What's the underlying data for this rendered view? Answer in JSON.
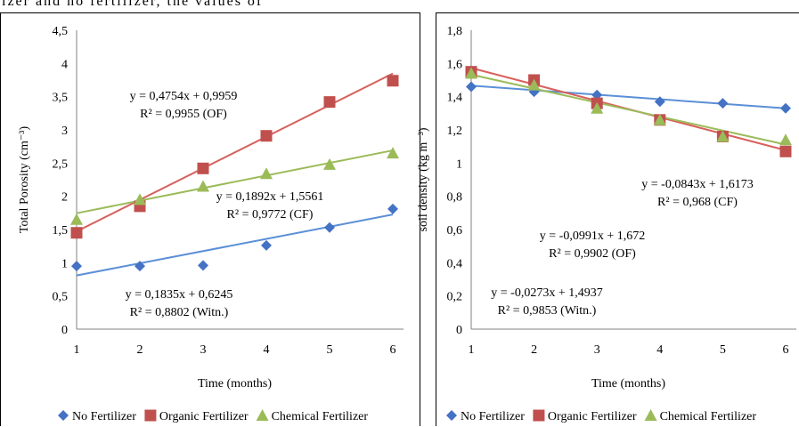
{
  "caption_fragment": "izer and no fertilizer, the values of",
  "chart_data": [
    {
      "type": "scatter",
      "title": "",
      "xlabel": "Time (months)",
      "ylabel": "Total Porosity (cm⁻³)",
      "x": [
        1,
        2,
        3,
        4,
        5,
        6
      ],
      "xticks": [
        "1",
        "2",
        "3",
        "4",
        "5",
        "6"
      ],
      "ylim": [
        0,
        4.5
      ],
      "yticks": [
        "0",
        "0,5",
        "1",
        "1,5",
        "2",
        "2,5",
        "3",
        "3,5",
        "4",
        "4,5"
      ],
      "grid": false,
      "legend_position": "bottom",
      "series": [
        {
          "name": "No Fertilizer",
          "marker": "diamond",
          "color": "#4472C4",
          "line_color": "#5B8FD6",
          "values": [
            0.95,
            0.95,
            0.96,
            1.26,
            1.53,
            1.81
          ],
          "trend": {
            "slope": 0.1835,
            "intercept": 0.6245
          }
        },
        {
          "name": "Organic Fertilizer",
          "marker": "square",
          "color": "#C0504D",
          "line_color": "#D9605D",
          "values": [
            1.45,
            1.85,
            2.42,
            2.91,
            3.42,
            3.74
          ],
          "trend": {
            "slope": 0.4754,
            "intercept": 0.9959
          }
        },
        {
          "name": "Chemical Fertilizer",
          "marker": "triangle",
          "color": "#9BBB59",
          "line_color": "#9BBB59",
          "values": [
            1.65,
            1.95,
            2.15,
            2.34,
            2.48,
            2.65
          ],
          "trend": {
            "slope": 0.1892,
            "intercept": 1.5561
          }
        }
      ],
      "annotations": [
        {
          "line1": "y = 0,4754x + 0,9959",
          "line2": "R² = 0,9955 (OF)"
        },
        {
          "line1": "y = 0,1892x + 1,5561",
          "line2": "R² = 0,9772 (CF)"
        },
        {
          "line1": "y = 0,1835x + 0,6245",
          "line2": "R² = 0,8802 (Witn.)"
        }
      ]
    },
    {
      "type": "scatter",
      "title": "",
      "xlabel": "Time (months)",
      "ylabel": "soil density (kg m⁻³)",
      "x": [
        1,
        2,
        3,
        4,
        5,
        6
      ],
      "xticks": [
        "1",
        "2",
        "3",
        "4",
        "5",
        "6"
      ],
      "ylim": [
        0,
        1.8
      ],
      "yticks": [
        "0",
        "0,2",
        "0,4",
        "0,6",
        "0,8",
        "1",
        "1,2",
        "1,4",
        "1,6",
        "1,8"
      ],
      "grid": false,
      "legend_position": "bottom",
      "series": [
        {
          "name": "No Fertilizer",
          "marker": "diamond",
          "color": "#4472C4",
          "line_color": "#5B8FD6",
          "values": [
            1.46,
            1.43,
            1.41,
            1.37,
            1.36,
            1.33
          ],
          "trend": {
            "slope": -0.0273,
            "intercept": 1.4937
          }
        },
        {
          "name": "Organic Fertilizer",
          "marker": "square",
          "color": "#C0504D",
          "line_color": "#D9605D",
          "values": [
            1.55,
            1.5,
            1.36,
            1.26,
            1.16,
            1.07
          ],
          "trend": {
            "slope": -0.0991,
            "intercept": 1.672
          }
        },
        {
          "name": "Chemical Fertilizer",
          "marker": "triangle",
          "color": "#9BBB59",
          "line_color": "#9BBB59",
          "values": [
            1.54,
            1.47,
            1.33,
            1.26,
            1.16,
            1.14
          ],
          "trend": {
            "slope": -0.0843,
            "intercept": 1.6173
          }
        }
      ],
      "annotations": [
        {
          "line1": "y = -0,0843x + 1,6173",
          "line2": "R² = 0,968 (CF)"
        },
        {
          "line1": "y = -0,0991x + 1,672",
          "line2": "R² = 0,9902 (OF)"
        },
        {
          "line1": "y = -0,0273x + 1,4937",
          "line2": "R² = 0,9853 (Witn.)"
        }
      ]
    }
  ]
}
